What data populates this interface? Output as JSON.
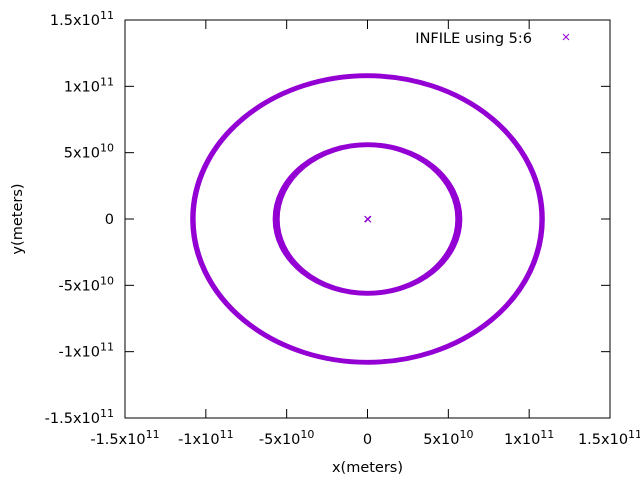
{
  "chart_data": {
    "type": "scatter",
    "xlabel": "x(meters)",
    "ylabel": "y(meters)",
    "xlim": [
      -150000000000,
      150000000000
    ],
    "ylim": [
      -150000000000,
      150000000000
    ],
    "x_ticks": [
      {
        "value": -150000000000,
        "mantissa": "-1.5x10",
        "exp": "11"
      },
      {
        "value": -100000000000,
        "mantissa": "-1x10",
        "exp": "11"
      },
      {
        "value": -50000000000,
        "mantissa": "-5x10",
        "exp": "10"
      },
      {
        "value": 0,
        "mantissa": "0",
        "exp": ""
      },
      {
        "value": 50000000000,
        "mantissa": "5x10",
        "exp": "10"
      },
      {
        "value": 100000000000,
        "mantissa": "1x10",
        "exp": "11"
      },
      {
        "value": 150000000000,
        "mantissa": "1.5x10",
        "exp": "11"
      }
    ],
    "y_ticks": [
      {
        "value": 150000000000,
        "mantissa": "1.5x10",
        "exp": "11"
      },
      {
        "value": 100000000000,
        "mantissa": "1x10",
        "exp": "11"
      },
      {
        "value": 50000000000,
        "mantissa": "5x10",
        "exp": "10"
      },
      {
        "value": 0,
        "mantissa": "0",
        "exp": ""
      },
      {
        "value": -50000000000,
        "mantissa": "-5x10",
        "exp": "10"
      },
      {
        "value": -100000000000,
        "mantissa": "-1x10",
        "exp": "11"
      },
      {
        "value": -150000000000,
        "mantissa": "-1.5x10",
        "exp": "11"
      }
    ],
    "grid": false,
    "legend_position": "top-right",
    "series": [
      {
        "name": "INFILE using 5:6",
        "color": "#9400d3",
        "marker": "cross",
        "orbits": [
          {
            "center": [
              0,
              0
            ],
            "rx_min": 107000000000,
            "rx_max": 109000000000,
            "ry_min": 107000000000,
            "ry_max": 109000000000
          },
          {
            "center": [
              0,
              0
            ],
            "rx_min": 55000000000,
            "rx_max": 58000000000,
            "ry_min": 55000000000,
            "ry_max": 57000000000
          }
        ],
        "central_points": [
          [
            0,
            0
          ]
        ]
      }
    ]
  }
}
